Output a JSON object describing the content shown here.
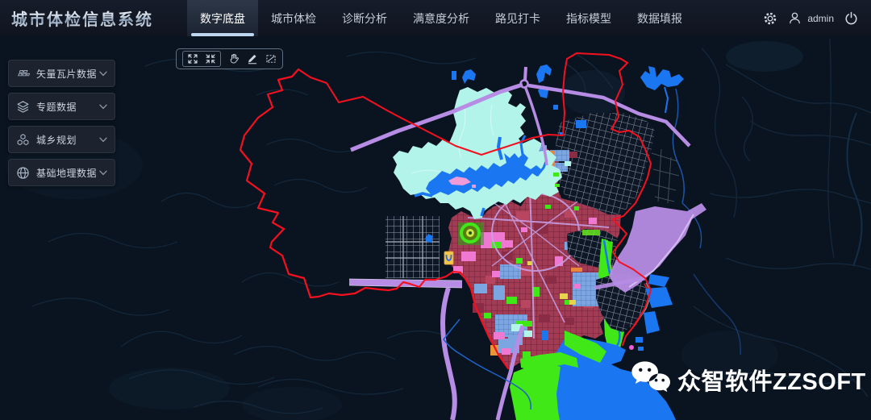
{
  "app": {
    "title": "城市体检信息系统"
  },
  "nav": {
    "tabs": [
      {
        "label": "数字底盘",
        "active": true
      },
      {
        "label": "城市体检",
        "active": false
      },
      {
        "label": "诊断分析",
        "active": false
      },
      {
        "label": "满意度分析",
        "active": false
      },
      {
        "label": "路见打卡",
        "active": false
      },
      {
        "label": "指标模型",
        "active": false
      },
      {
        "label": "数据填报",
        "active": false
      }
    ],
    "user": {
      "name": "admin"
    },
    "right_icons": [
      "settings-gear-icon",
      "user-icon",
      "power-icon"
    ]
  },
  "sidebar": {
    "items": [
      {
        "label": "矢量瓦片数据",
        "icon": "i-tiles",
        "icon_name": "tiles-icon"
      },
      {
        "label": "专题数据",
        "icon": "i-layers",
        "icon_name": "layers-icon"
      },
      {
        "label": "城乡规划",
        "icon": "i-cluster",
        "icon_name": "cluster-icon"
      },
      {
        "label": "基础地理数据",
        "icon": "i-globe",
        "icon_name": "globe-icon"
      }
    ]
  },
  "map_toolbar": {
    "tools": [
      {
        "name": "zoom-extent",
        "icon": "i-expand",
        "grouped": true
      },
      {
        "name": "zoom-selection",
        "icon": "i-collapse",
        "grouped": true
      },
      {
        "name": "pan-hand",
        "icon": "i-hand",
        "grouped": false
      },
      {
        "name": "draw-measure",
        "icon": "i-pencil",
        "grouped": false
      },
      {
        "name": "clear-polygon",
        "icon": "i-polygon",
        "grouped": false
      }
    ]
  },
  "watermark": {
    "text": "众智软件ZZSOFT",
    "icon": "wechat-icon"
  },
  "colors": {
    "accent_underline": "#bdd7ef",
    "boundary_red": "#f5101f",
    "water_blue": "#1b76f2",
    "reservoir_cyan": "#b2f3ea",
    "highway_purple": "#b78ce4",
    "urban_crimson": "#a23c55",
    "park_green": "#3fe816",
    "zone_pink": "#ef79d2",
    "zone_blue": "#7ba6e2"
  }
}
